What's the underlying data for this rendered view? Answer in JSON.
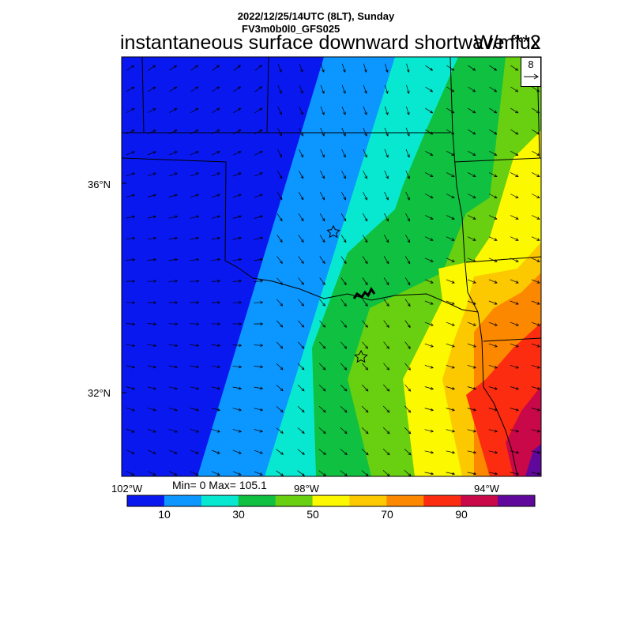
{
  "header": {
    "line1": "2022/12/25/14UTC (8LT), Sunday",
    "line2": "FV3m0b0l0_GFS025",
    "main_title": "instantaneous surface downward shortwave flux",
    "units": "W/m**2"
  },
  "reference_vector": {
    "value": "8"
  },
  "axes": {
    "lat_labels": [
      "36°N",
      "32°N"
    ],
    "lon_labels": [
      "102°W",
      "98°W",
      "94°W"
    ]
  },
  "stats": {
    "text": "Min= 0 Max= 105.1"
  },
  "colorbar": {
    "tick_labels": [
      "10",
      "30",
      "50",
      "70",
      "90"
    ],
    "colors": [
      "#0a18f0",
      "#0c96ff",
      "#08e8d0",
      "#10c040",
      "#68d010",
      "#fcf800",
      "#fcc800",
      "#fc8800",
      "#fc2c10",
      "#c80848",
      "#60089c"
    ]
  },
  "map_features": {
    "markers": [
      "star",
      "star"
    ],
    "wind_vectors": true
  }
}
